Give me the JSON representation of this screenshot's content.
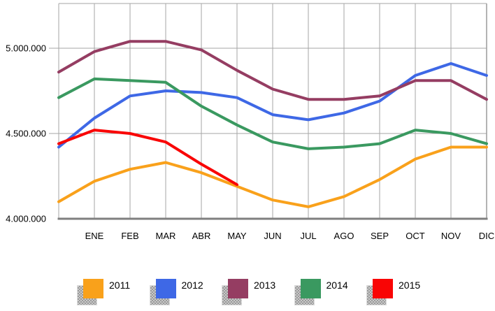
{
  "chart_data": {
    "type": "line",
    "title": "",
    "xlabel": "",
    "ylabel": "",
    "x_labels": [
      "",
      "ENE",
      "FEB",
      "MAR",
      "ABR",
      "MAY",
      "JUN",
      "JUL",
      "AGO",
      "SEP",
      "OCT",
      "NOV",
      "DIC"
    ],
    "y_ticks": [
      {
        "value": 4000000,
        "label": "4.000.000"
      },
      {
        "value": 4500000,
        "label": "4.500.000"
      },
      {
        "value": 5000000,
        "label": "5.000.000"
      }
    ],
    "ylim": [
      4000000,
      5262000
    ],
    "grid": true,
    "legend_position": "bottom",
    "series": [
      {
        "name": "2011",
        "color": "#F9A11B",
        "values": [
          4100000,
          4220000,
          4290000,
          4330000,
          4270000,
          4190000,
          4110000,
          4070000,
          4130000,
          4230000,
          4350000,
          4420000,
          4420000
        ]
      },
      {
        "name": "2012",
        "color": "#3E68E6",
        "values": [
          4420000,
          4590000,
          4720000,
          4750000,
          4740000,
          4710000,
          4610000,
          4580000,
          4620000,
          4690000,
          4840000,
          4910000,
          4840000
        ]
      },
      {
        "name": "2013",
        "color": "#953D62",
        "values": [
          4860000,
          4980000,
          5040000,
          5040000,
          4990000,
          4870000,
          4760000,
          4700000,
          4700000,
          4720000,
          4810000,
          4810000,
          4700000
        ]
      },
      {
        "name": "2014",
        "color": "#3A9960",
        "values": [
          4710000,
          4820000,
          4810000,
          4800000,
          4660000,
          4550000,
          4450000,
          4410000,
          4420000,
          4440000,
          4520000,
          4500000,
          4440000
        ]
      },
      {
        "name": "2015",
        "color": "#F90505",
        "values": [
          4440000,
          4520000,
          4500000,
          4450000,
          4320000,
          4200000
        ]
      }
    ]
  },
  "colors": {
    "background": "#FFFFFF",
    "gridline": "#A6A6A6",
    "plot_border": "#9B9B9B",
    "axis_bottom": "#7F7F7F",
    "text": "#000000",
    "legend_shadow": "#A8A8A8"
  }
}
